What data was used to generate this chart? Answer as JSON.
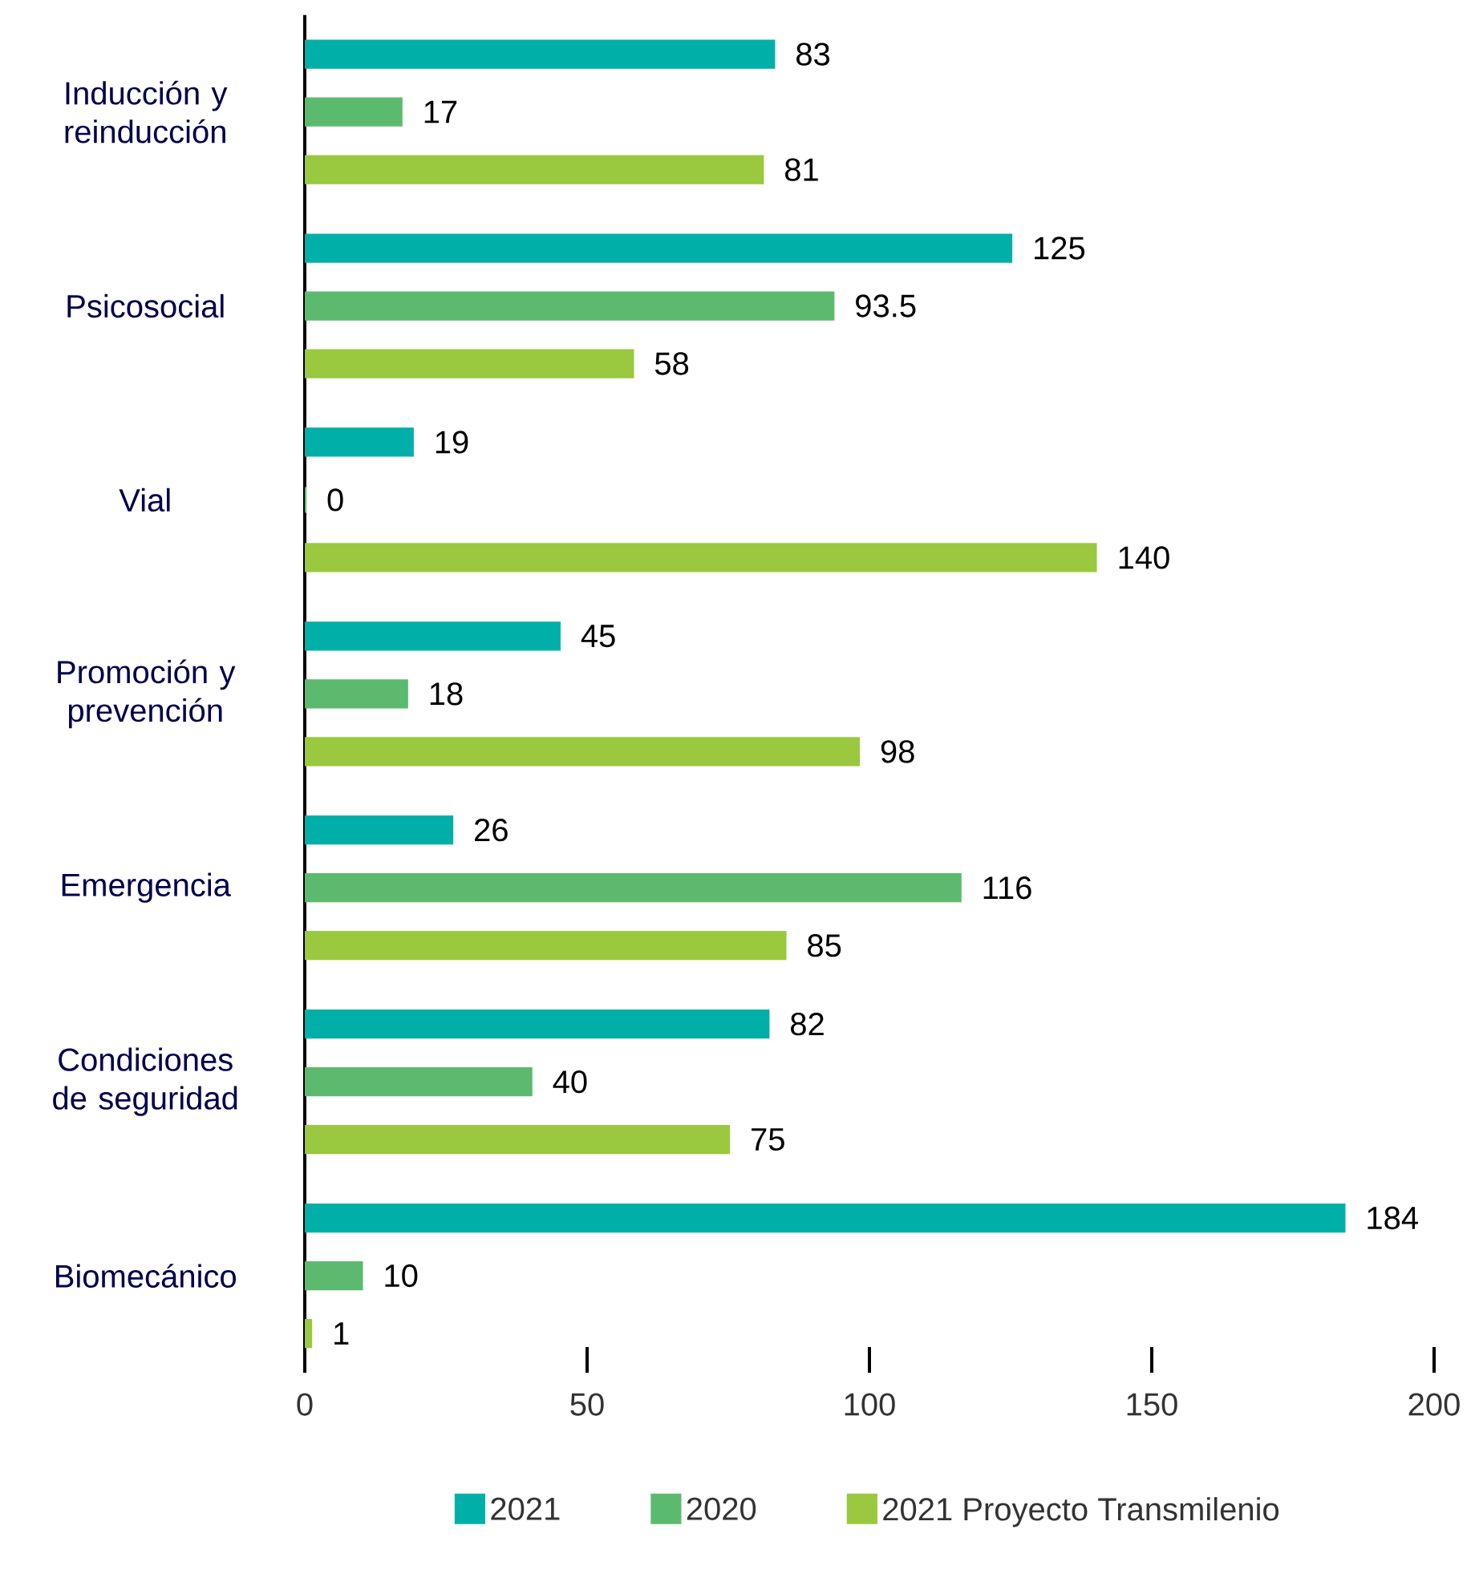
{
  "chart_data": {
    "type": "bar",
    "orientation": "horizontal",
    "categories": [
      "Inducción y reinducción",
      "Psicosocial",
      "Vial",
      "Promoción y prevención",
      "Emergencia",
      "Condiciones de seguridad",
      "Biomecánico"
    ],
    "series": [
      {
        "name": "2021",
        "color": "#00b0a8",
        "values": [
          83,
          125,
          19,
          45,
          26,
          82,
          184
        ]
      },
      {
        "name": "2020",
        "color": "#5cba6e",
        "values": [
          17,
          93.5,
          0,
          18,
          116,
          40,
          10
        ]
      },
      {
        "name": "2021 Proyecto Transmilenio",
        "color": "#9ac83e",
        "values": [
          81,
          58,
          140,
          98,
          85,
          75,
          1
        ]
      }
    ],
    "xlim": [
      0,
      200
    ],
    "xticks": [
      0,
      50,
      100,
      150,
      200
    ],
    "data_labels": true,
    "legend": "bottom",
    "grid": false
  }
}
